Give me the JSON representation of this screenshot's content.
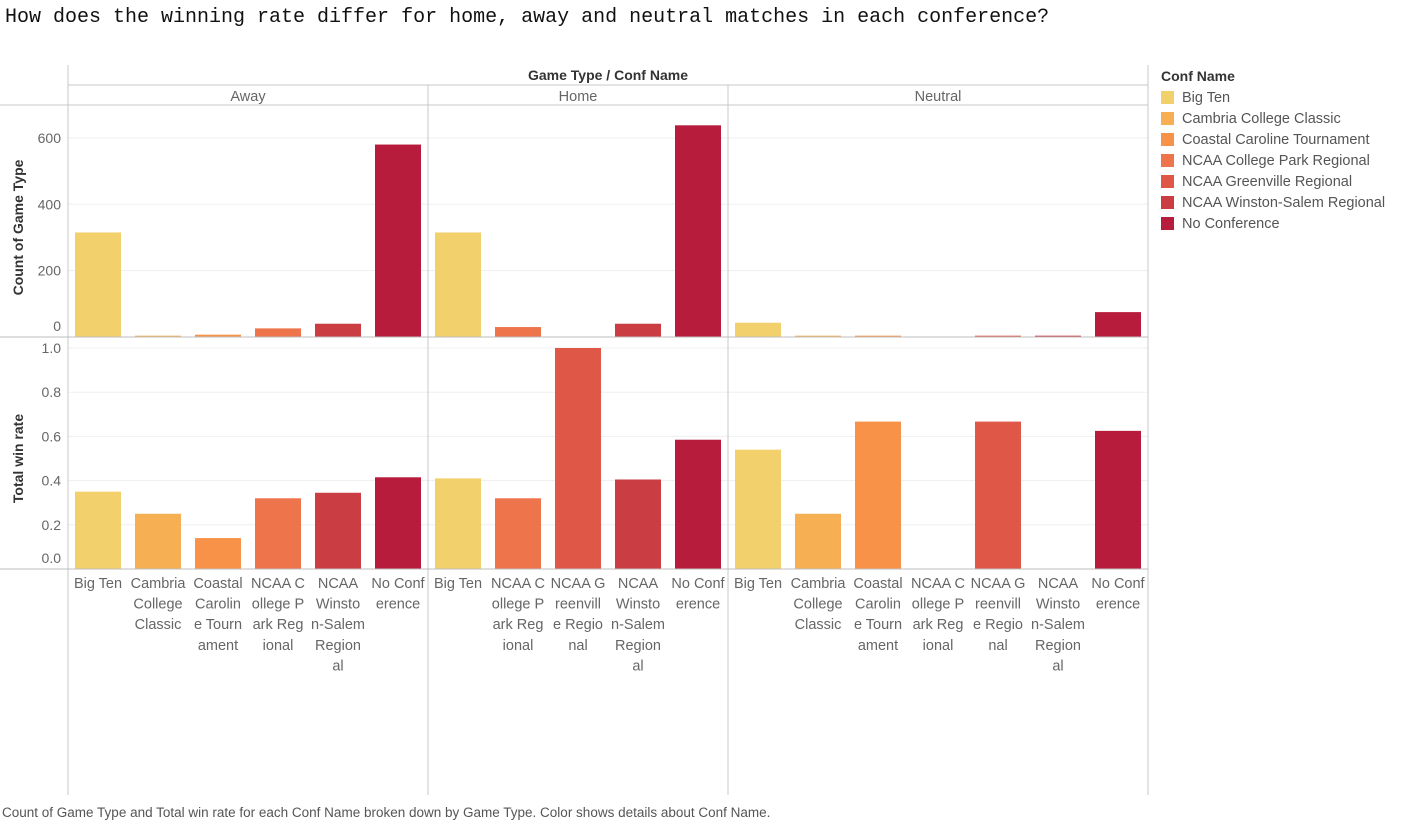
{
  "title": "How does the winning rate differ for home, away and neutral matches in each conference?",
  "caption": "Count of Game Type and Total win rate for each Conf Name broken down by Game Type.  Color shows details about Conf Name.",
  "legend": {
    "title": "Conf Name",
    "items": [
      {
        "label": "Big Ten",
        "color": "#F2D06B"
      },
      {
        "label": "Cambria College Classic",
        "color": "#F7AF53"
      },
      {
        "label": "Coastal Caroline Tournament",
        "color": "#F99249"
      },
      {
        "label": "NCAA College Park Regional",
        "color": "#EE744C"
      },
      {
        "label": "NCAA Greenville Regional",
        "color": "#DF5746"
      },
      {
        "label": "NCAA Winston-Salem Regional",
        "color": "#CA3D43"
      },
      {
        "label": "No Conference",
        "color": "#B71C3C"
      }
    ]
  },
  "chart_data": {
    "type": "bar",
    "column_header": "Game Type  /  Conf Name",
    "facets": [
      {
        "name": "Away",
        "categories": [
          "Big Ten",
          "Cambria College Classic",
          "Coastal Caroline Tournament",
          "NCAA College Park Regional",
          "NCAA Winston-Salem Regional",
          "No Conference"
        ],
        "category_labels": [
          [
            "Big Ten"
          ],
          [
            "Cambria",
            "College",
            "Classic"
          ],
          [
            "Coastal",
            "Carolin",
            "e Tourn",
            "ament"
          ],
          [
            "NCAA C",
            "ollege P",
            "ark Reg",
            "ional"
          ],
          [
            "NCAA",
            "Winsto",
            "n-Salem",
            "Region",
            "al"
          ],
          [
            "No Conf",
            "erence"
          ]
        ],
        "count": [
          315,
          4,
          7,
          26,
          40,
          580
        ],
        "win_rate": [
          0.35,
          0.25,
          0.14,
          0.32,
          0.345,
          0.415
        ]
      },
      {
        "name": "Home",
        "categories": [
          "Big Ten",
          "NCAA College Park Regional",
          "NCAA Greenville Regional",
          "NCAA Winston-Salem Regional",
          "No Conference"
        ],
        "category_labels": [
          [
            "Big Ten"
          ],
          [
            "NCAA C",
            "ollege P",
            "ark Reg",
            "ional"
          ],
          [
            "NCAA G",
            "reenvill",
            "e Regio",
            "nal"
          ],
          [
            "NCAA",
            "Winsto",
            "n-Salem",
            "Region",
            "al"
          ],
          [
            "No Conf",
            "erence"
          ]
        ],
        "count": [
          315,
          30,
          0,
          40,
          638
        ],
        "win_rate": [
          0.41,
          0.32,
          1.0,
          0.405,
          0.585
        ]
      },
      {
        "name": "Neutral",
        "categories": [
          "Big Ten",
          "Cambria College Classic",
          "Coastal Caroline Tournament",
          "NCAA College Park Regional",
          "NCAA Greenville Regional",
          "NCAA Winston-Salem Regional",
          "No Conference"
        ],
        "category_labels": [
          [
            "Big Ten"
          ],
          [
            "Cambria",
            "College",
            "Classic"
          ],
          [
            "Coastal",
            "Carolin",
            "e Tourn",
            "ament"
          ],
          [
            "NCAA C",
            "ollege P",
            "ark Reg",
            "ional"
          ],
          [
            "NCAA G",
            "reenvill",
            "e Regio",
            "nal"
          ],
          [
            "NCAA",
            "Winsto",
            "n-Salem",
            "Region",
            "al"
          ],
          [
            "No Conf",
            "erence"
          ]
        ],
        "count": [
          43,
          4,
          4,
          0,
          4,
          4,
          75
        ],
        "win_rate": [
          0.54,
          0.25,
          0.667,
          0,
          0.667,
          0,
          0.625
        ]
      }
    ],
    "panels": [
      {
        "measure": "count",
        "ylabel": "Count of Game Type",
        "ylim": [
          0,
          660
        ],
        "ticks": [
          0,
          200,
          400,
          600
        ],
        "tick_labels": [
          "0",
          "200",
          "400",
          "600"
        ]
      },
      {
        "measure": "win_rate",
        "ylabel": "Total win rate",
        "ylim": [
          0,
          1.0
        ],
        "ticks": [
          0,
          0.2,
          0.4,
          0.6,
          0.8,
          1.0
        ],
        "tick_labels": [
          "0.0",
          "0.2",
          "0.4",
          "0.6",
          "0.8",
          "1.0"
        ]
      }
    ],
    "grid": true,
    "legend_position": "right"
  }
}
